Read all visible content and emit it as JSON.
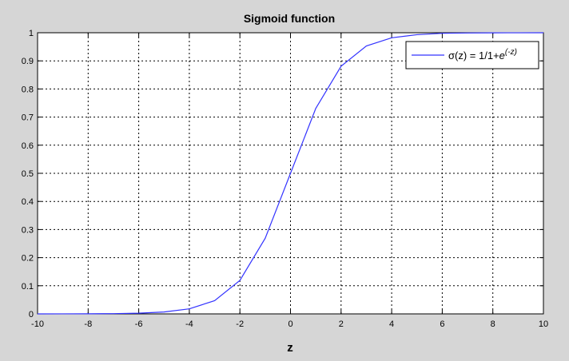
{
  "chart_data": {
    "type": "line",
    "title": "Sigmoid function",
    "xlabel": "z",
    "ylabel": "",
    "xlim": [
      -10,
      10
    ],
    "ylim": [
      0,
      1
    ],
    "xticks": [
      -10,
      -8,
      -6,
      -4,
      -2,
      0,
      2,
      4,
      6,
      8,
      10
    ],
    "yticks": [
      0,
      0.1,
      0.2,
      0.3,
      0.4,
      0.5,
      0.6,
      0.7,
      0.8,
      0.9,
      1
    ],
    "grid": true,
    "legend_position": "top-right",
    "legend": {
      "prefix": "σ(z) = 1/1+",
      "base": "e",
      "exponent": "(-z)"
    },
    "series": [
      {
        "color": "#3333ff",
        "x": [
          -10,
          -9,
          -8,
          -7,
          -6,
          -5,
          -4,
          -3,
          -2,
          -1,
          0,
          1,
          2,
          3,
          4,
          5,
          6,
          7,
          8,
          9,
          10
        ],
        "y": [
          0.0,
          0.0001,
          0.0003,
          0.0009,
          0.0025,
          0.0067,
          0.018,
          0.047,
          0.119,
          0.269,
          0.5,
          0.731,
          0.881,
          0.953,
          0.982,
          0.993,
          0.998,
          0.9991,
          0.9997,
          0.9999,
          1.0
        ]
      }
    ]
  }
}
